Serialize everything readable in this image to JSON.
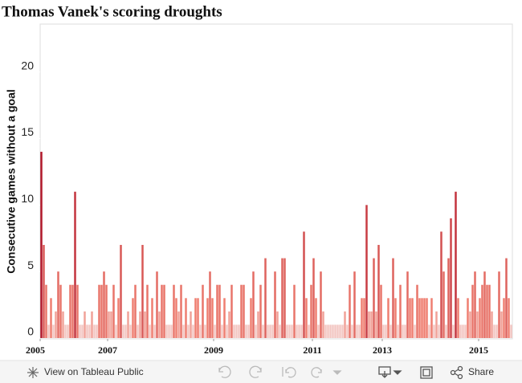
{
  "chart_data": {
    "type": "bar",
    "title": "Thomas Vanek's scoring droughts",
    "y_label": "Consecutive games without a goal",
    "values": [
      14,
      7,
      4,
      1,
      3,
      1,
      2,
      5,
      4,
      2,
      1,
      1,
      4,
      4,
      11,
      4,
      1,
      1,
      2,
      1,
      1,
      2,
      1,
      1,
      4,
      4,
      5,
      4,
      2,
      2,
      4,
      1,
      3,
      7,
      1,
      1,
      2,
      1,
      3,
      4,
      1,
      2,
      7,
      2,
      4,
      1,
      3,
      1,
      5,
      2,
      4,
      4,
      1,
      1,
      1,
      4,
      3,
      2,
      4,
      1,
      3,
      1,
      2,
      1,
      3,
      3,
      1,
      4,
      1,
      3,
      5,
      3,
      1,
      4,
      4,
      1,
      3,
      1,
      2,
      4,
      1,
      1,
      1,
      4,
      4,
      1,
      1,
      3,
      5,
      1,
      2,
      4,
      1,
      6,
      1,
      1,
      1,
      5,
      2,
      1,
      6,
      6,
      1,
      1,
      1,
      4,
      1,
      1,
      1,
      8,
      3,
      1,
      4,
      6,
      3,
      1,
      5,
      2,
      1,
      1,
      1,
      1,
      1,
      1,
      1,
      1,
      2,
      1,
      4,
      1,
      5,
      1,
      1,
      3,
      3,
      10,
      2,
      2,
      6,
      2,
      7,
      4,
      1,
      1,
      3,
      1,
      6,
      3,
      1,
      4,
      1,
      1,
      5,
      3,
      3,
      1,
      4,
      3,
      3,
      3,
      3,
      1,
      3,
      1,
      2,
      1,
      8,
      5,
      1,
      6,
      9,
      1,
      11,
      3,
      1,
      1,
      1,
      3,
      2,
      4,
      5,
      2,
      3,
      4,
      5,
      4,
      4,
      2,
      1,
      1,
      5,
      2,
      3,
      6,
      3,
      1
    ],
    "colors": [
      "#f3c7c3",
      "#ef7f71",
      "#b2182b"
    ],
    "xlim": [
      0,
      196
    ],
    "xticks": [
      {
        "value": 0,
        "label": "2005"
      },
      {
        "value": 28,
        "label": "2007"
      },
      {
        "value": 72,
        "label": "2009"
      },
      {
        "value": 113,
        "label": "2011"
      },
      {
        "value": 142,
        "label": "2013"
      },
      {
        "value": 182,
        "label": "2015"
      }
    ],
    "ylim": [
      0,
      23.6
    ],
    "yticks": [
      0,
      5,
      10,
      15,
      20
    ],
    "grid": false
  },
  "toolbar": {
    "view": "View on Tableau Public",
    "share": "Share"
  }
}
